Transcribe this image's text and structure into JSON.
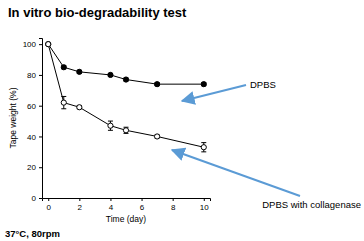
{
  "chart_data": {
    "type": "line",
    "title": "In vitro bio-degradability test",
    "x_label": "Time (day)",
    "y_label": "Tape weight (%)",
    "x": [
      0,
      1,
      2,
      4,
      5,
      7,
      10
    ],
    "series": [
      {
        "name": "DPBS",
        "color": "#000000",
        "marker": "filled-circle",
        "line_style": "solid",
        "values": [
          100,
          85,
          82,
          80,
          77,
          74,
          74
        ],
        "errors": [
          0,
          1,
          1,
          1,
          1,
          1,
          1
        ]
      },
      {
        "name": "DPBS with collagenase",
        "color": "#000000",
        "marker": "open-circle",
        "line_style": "solid",
        "values": [
          100,
          62,
          59,
          47,
          44,
          40,
          33
        ],
        "errors": [
          0,
          4,
          1,
          3,
          2,
          1,
          3
        ]
      }
    ],
    "annotations": [
      "DPBS",
      "DPBS with collagenase",
      "37°C, 80rpm"
    ],
    "xlim": [
      -0.4,
      10.4
    ],
    "ylim": [
      0,
      104
    ],
    "xticks": [
      0,
      2,
      4,
      6,
      8,
      10
    ],
    "yticks": [
      0,
      20,
      40,
      60,
      80,
      100
    ],
    "grid": false
  }
}
